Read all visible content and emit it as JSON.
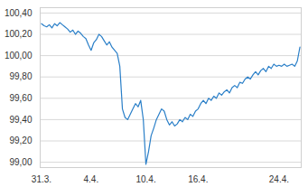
{
  "chart_data": {
    "type": "line",
    "color": "#2a7fc8",
    "grid": true,
    "categories": [
      "31.3.",
      null,
      null,
      null,
      null,
      null,
      null,
      null,
      null,
      null,
      null,
      null,
      null,
      null,
      null,
      null,
      null,
      null,
      null,
      "4.4.",
      null,
      null,
      null,
      null,
      null,
      null,
      null,
      null,
      null,
      null,
      null,
      null,
      null,
      null,
      null,
      null,
      null,
      null,
      null,
      null,
      "10.4.",
      null,
      null,
      null,
      null,
      null,
      null,
      null,
      null,
      null,
      null,
      null,
      null,
      null,
      null,
      null,
      null,
      null,
      null,
      null,
      "16.4.",
      null,
      null,
      null,
      null,
      null,
      null,
      null,
      null,
      null,
      null,
      null,
      null,
      null,
      null,
      null,
      null,
      null,
      null,
      null,
      null,
      null,
      null,
      null,
      null,
      null,
      null,
      null,
      null,
      null,
      null,
      "24.4.",
      null,
      null,
      null,
      null,
      null,
      null,
      null,
      null
    ],
    "values": [
      100.3,
      100.28,
      100.27,
      100.29,
      100.26,
      100.3,
      100.28,
      100.31,
      100.29,
      100.27,
      100.25,
      100.22,
      100.24,
      100.2,
      100.23,
      100.21,
      100.18,
      100.16,
      100.1,
      100.05,
      100.12,
      100.15,
      100.2,
      100.18,
      100.14,
      100.1,
      100.13,
      100.08,
      100.05,
      100.02,
      99.9,
      99.5,
      99.42,
      99.4,
      99.45,
      99.5,
      99.55,
      99.52,
      99.58,
      99.4,
      98.98,
      99.1,
      99.25,
      99.32,
      99.4,
      99.45,
      99.5,
      99.48,
      99.4,
      99.35,
      99.38,
      99.34,
      99.36,
      99.4,
      99.38,
      99.42,
      99.4,
      99.45,
      99.43,
      99.48,
      99.5,
      99.55,
      99.58,
      99.55,
      99.6,
      99.58,
      99.62,
      99.6,
      99.65,
      99.63,
      99.66,
      99.68,
      99.65,
      99.7,
      99.72,
      99.7,
      99.75,
      99.74,
      99.78,
      99.8,
      99.78,
      99.82,
      99.85,
      99.82,
      99.86,
      99.88,
      99.85,
      99.9,
      99.88,
      99.92,
      99.9,
      99.91,
      99.9,
      99.92,
      99.9,
      99.91,
      99.92,
      99.9,
      99.95,
      100.08
    ],
    "ylim": [
      98.95,
      100.45
    ],
    "yticks": [
      {
        "value": 99.0,
        "label": "99,00"
      },
      {
        "value": 99.2,
        "label": "99,20"
      },
      {
        "value": 99.4,
        "label": "99,40"
      },
      {
        "value": 99.6,
        "label": "99,60"
      },
      {
        "value": 99.8,
        "label": "99,80"
      },
      {
        "value": 100.0,
        "label": "100,00"
      },
      {
        "value": 100.2,
        "label": "100,20"
      },
      {
        "value": 100.4,
        "label": "100,40"
      }
    ]
  }
}
